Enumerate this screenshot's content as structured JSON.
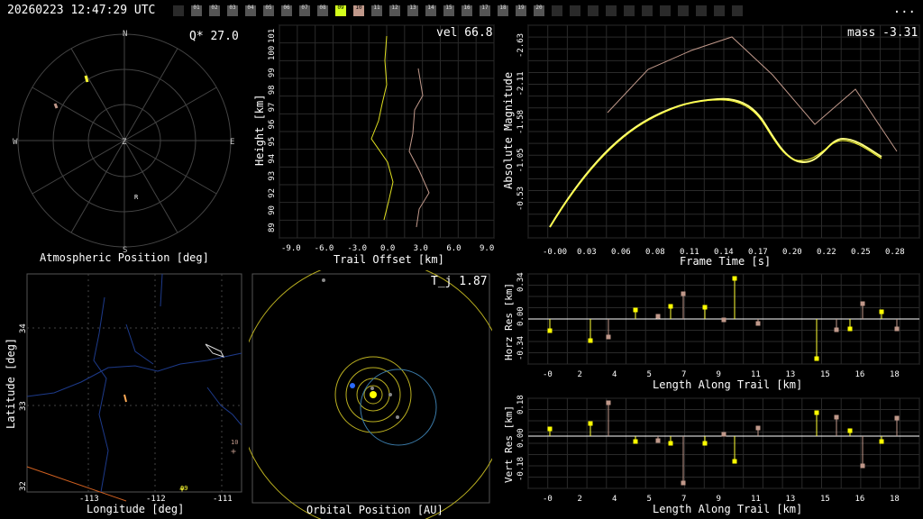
{
  "header": {
    "timestamp": "20260223 12:47:29 UTC",
    "menu_label": "...",
    "cameras": [
      "",
      "01",
      "02",
      "03",
      "04",
      "05",
      "06",
      "07",
      "08",
      "09",
      "10",
      "11",
      "12",
      "13",
      "14",
      "15",
      "16",
      "17",
      "18",
      "19",
      "20",
      "",
      "",
      "",
      "",
      "",
      "",
      "",
      "",
      "",
      "",
      ""
    ],
    "active_camera": "09",
    "secondary_camera": "10"
  },
  "polar": {
    "title": "Atmospheric Position [deg]",
    "metric": "Q* 27.0",
    "north": "N",
    "south": "S",
    "east": "E",
    "west": "W",
    "zenith": "Z",
    "marker": "R"
  },
  "height": {
    "metric": "vel 66.8",
    "xlabel": "Trail Offset [km]",
    "ylabel": "Height [km]",
    "xticks": [
      "-9.0",
      "-6.0",
      "-3.0",
      "0.0",
      "3.0",
      "6.0",
      "9.0"
    ],
    "yticks": [
      "101",
      "100",
      "99",
      "98",
      "97",
      "96",
      "95",
      "94",
      "93",
      "92",
      "90",
      "89"
    ]
  },
  "magnitude": {
    "metric": "mass -3.31",
    "xlabel": "Frame Time [s]",
    "ylabel": "Absolute Magnitude",
    "xticks": [
      "-0.00",
      "0.03",
      "0.06",
      "0.08",
      "0.11",
      "0.14",
      "0.17",
      "0.20",
      "0.22",
      "0.25",
      "0.28"
    ],
    "yticks": [
      "-2.63",
      "-2.11",
      "-1.58",
      "-1.05",
      "-0.53"
    ]
  },
  "map": {
    "xlabel": "Longitude [deg]",
    "ylabel": "Latitude [deg]",
    "xticks": [
      "-113",
      "-112",
      "-111"
    ],
    "yticks": [
      "34",
      "33",
      "32"
    ],
    "station_a": "09",
    "station_b": "10"
  },
  "orbit": {
    "metric": "T_j 1.87",
    "xlabel": "Orbital Position [AU]"
  },
  "horz": {
    "ylabel": "Horz Res [km]",
    "xlabel": "Length Along Trail [km]",
    "xticks": [
      "-0",
      "2",
      "4",
      "5",
      "7",
      "9",
      "11",
      "13",
      "15",
      "16",
      "18"
    ],
    "yticks": [
      "0.34",
      "0.00",
      "-0.34"
    ]
  },
  "vert": {
    "ylabel": "Vert Res [km]",
    "xlabel": "Length Along Trail [km]",
    "xticks": [
      "-0",
      "2",
      "4",
      "5",
      "7",
      "9",
      "11",
      "13",
      "15",
      "16",
      "18"
    ],
    "yticks": [
      "0.18",
      "0.00",
      "-0.18"
    ]
  },
  "colors": {
    "yellow": "#ffff33",
    "tan": "#c0988a",
    "grid": "#333333",
    "bright_green": "#d4ff1c"
  }
}
